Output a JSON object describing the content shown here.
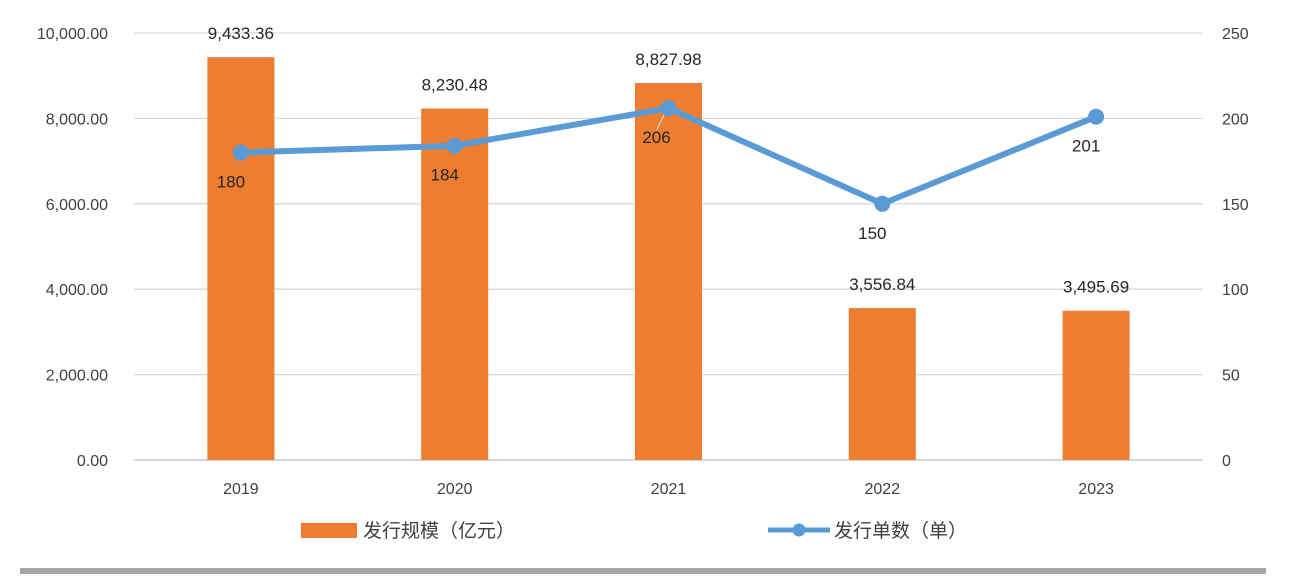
{
  "colors": {
    "bar": "#ED7D31",
    "line": "#5B9BD5",
    "grid": "#D9D9D9",
    "text": "#404040"
  },
  "chart_data": {
    "type": "bar",
    "categories": [
      "2019",
      "2020",
      "2021",
      "2022",
      "2023"
    ],
    "series": [
      {
        "name": "发行规模（亿元）",
        "type": "bar",
        "axis": "left",
        "values": [
          9433.36,
          8230.48,
          8827.98,
          3556.84,
          3495.69
        ],
        "labels": [
          "9,433.36",
          "8,230.48",
          "8,827.98",
          "3,556.84",
          "3,495.69"
        ]
      },
      {
        "name": "发行单数（单）",
        "type": "line",
        "axis": "right",
        "marker": "circle",
        "values": [
          180,
          184,
          206,
          150,
          201
        ],
        "labels": [
          "180",
          "184",
          "206",
          "150",
          "201"
        ]
      }
    ],
    "y_left": {
      "ylim": [
        0,
        10000
      ],
      "ticks": [
        0,
        2000,
        4000,
        6000,
        8000,
        10000
      ],
      "tick_labels": [
        "0.00",
        "2,000.00",
        "4,000.00",
        "6,000.00",
        "8,000.00",
        "10,000.00"
      ]
    },
    "y_right": {
      "ylim": [
        0,
        250
      ],
      "ticks": [
        0,
        50,
        100,
        150,
        200,
        250
      ],
      "tick_labels": [
        "0",
        "50",
        "100",
        "150",
        "200",
        "250"
      ]
    },
    "grid": true,
    "legend": "bottom"
  }
}
